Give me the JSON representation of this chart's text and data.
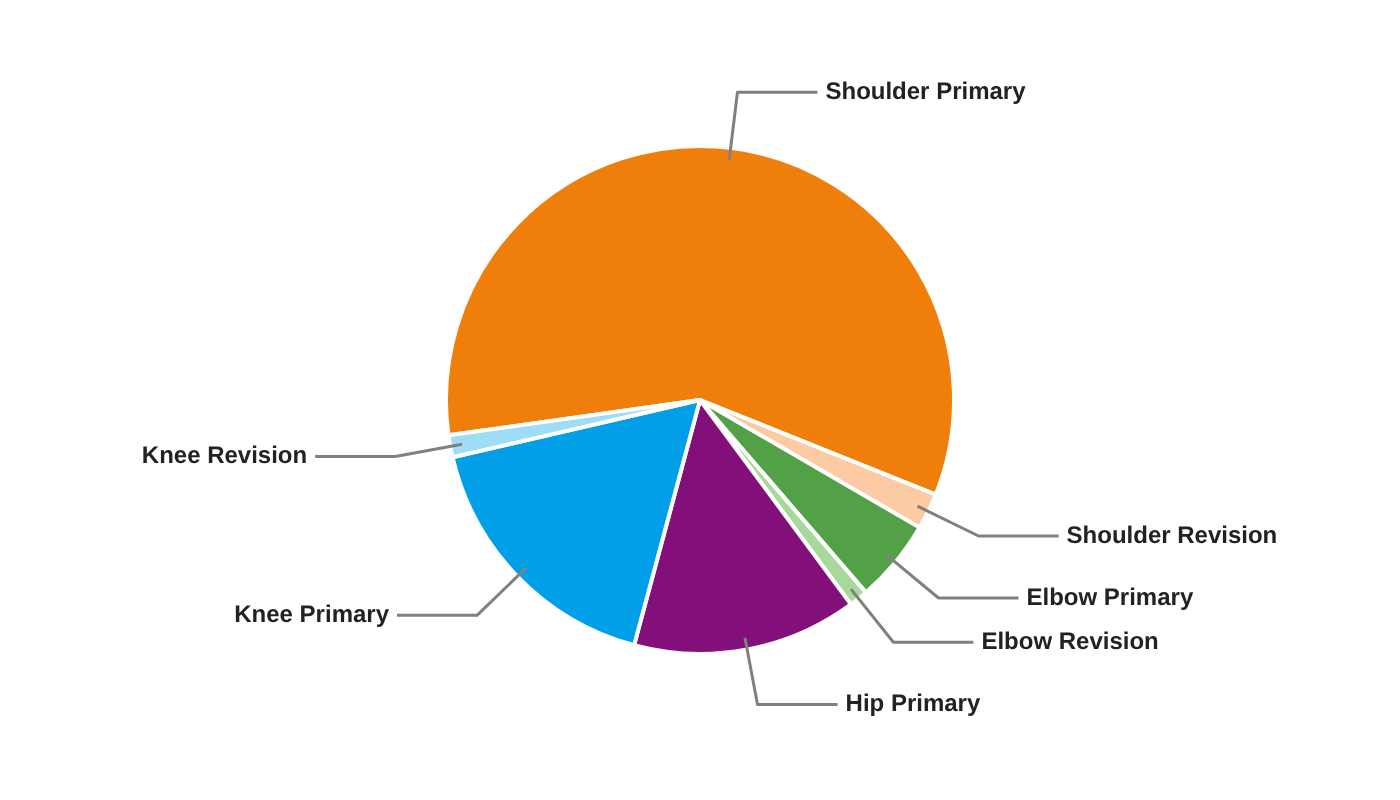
{
  "chart_data": {
    "type": "pie",
    "categories": [
      "Shoulder Primary",
      "Shoulder Revision",
      "Elbow Primary",
      "Elbow Revision",
      "Hip Primary",
      "Knee Primary",
      "Knee Revision"
    ],
    "values": [
      58.3,
      2.3,
      5.3,
      1.2,
      14.3,
      17.2,
      1.4
    ],
    "colors": [
      "#ef7f0a",
      "#fccba4",
      "#52a146",
      "#a8d99a",
      "#830f7a",
      "#009fe8",
      "#9fdcf5"
    ]
  }
}
